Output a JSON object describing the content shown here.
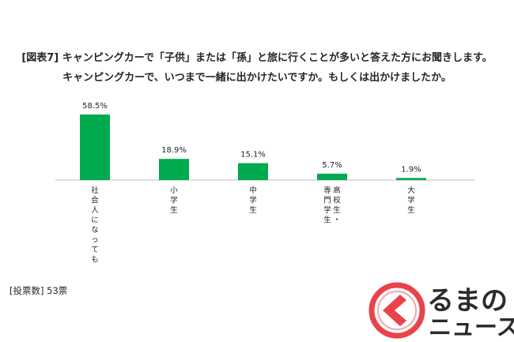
{
  "chart_data": {
    "type": "bar",
    "title": "[図表7] キャンピングカーで「子供」または「孫」と旅に行くことが多いと答えた方にお聞きします。",
    "subtitle": "キャンピングカーで、いつまで一緒に出かけたいですか。もしくは出かけましたか。",
    "categories": [
      "社会人になっても",
      "小学生",
      "中学生",
      "高校生・専門学生",
      "大学生"
    ],
    "values": [
      58.5,
      18.9,
      15.1,
      5.7,
      1.9
    ],
    "value_labels": [
      "58.5%",
      "18.9%",
      "15.1%",
      "5.7%",
      "1.9%"
    ],
    "ylim": [
      0,
      58.5
    ],
    "grid": false,
    "legend": "none",
    "bar_color": "#00aa4f",
    "note": "[投票数] 53票"
  },
  "logo": {
    "line1": "るまの",
    "line2": "ニュース",
    "accent_color": "#e8434a"
  }
}
